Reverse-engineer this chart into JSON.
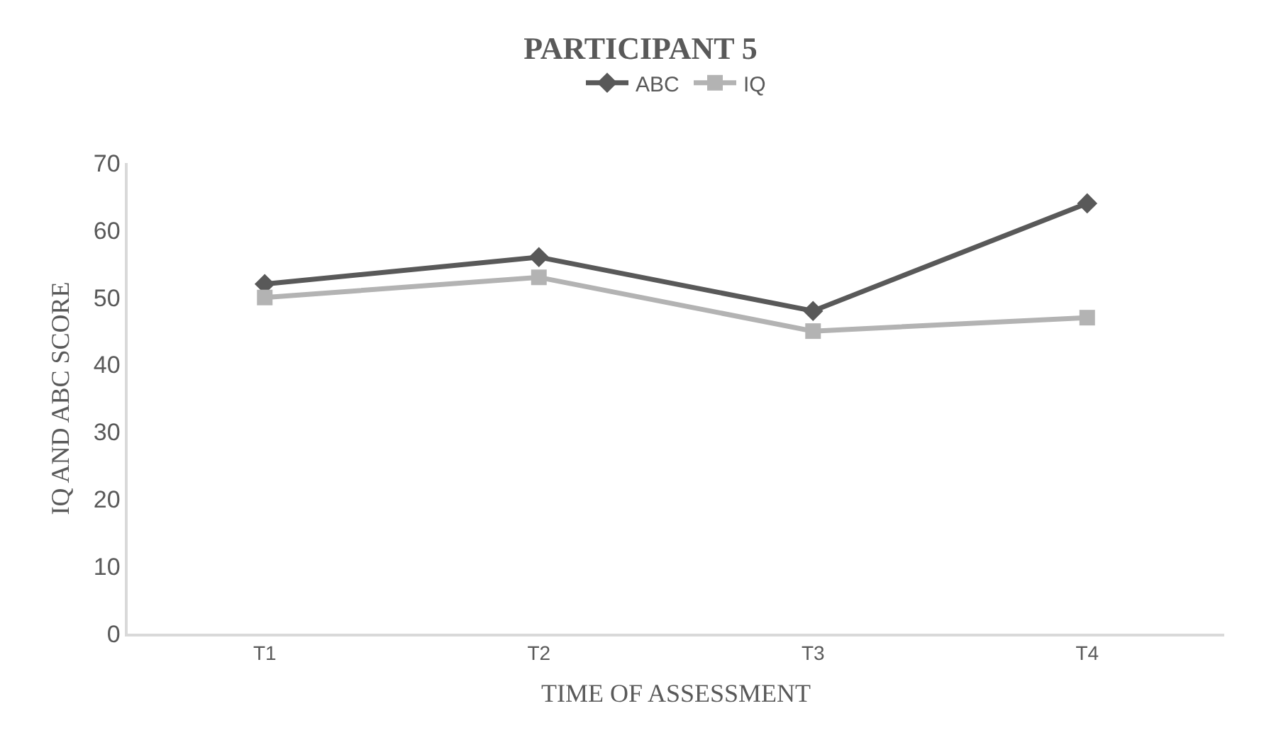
{
  "chart_data": {
    "type": "line",
    "title": "PARTICIPANT 5",
    "xlabel": "TIME OF ASSESSMENT",
    "ylabel": "IQ AND ABC SCORE",
    "categories": [
      "T1",
      "T2",
      "T3",
      "T4"
    ],
    "series": [
      {
        "name": "ABC",
        "color": "#595959",
        "marker": "diamond",
        "values": [
          52,
          56,
          48,
          64
        ]
      },
      {
        "name": "IQ",
        "color": "#b3b3b3",
        "marker": "square",
        "values": [
          50,
          53,
          45,
          47
        ]
      }
    ],
    "ylim": [
      0,
      70
    ],
    "yticks": [
      0,
      10,
      20,
      30,
      40,
      50,
      60,
      70
    ],
    "grid": false,
    "legend": "top",
    "line_style": "solid"
  }
}
